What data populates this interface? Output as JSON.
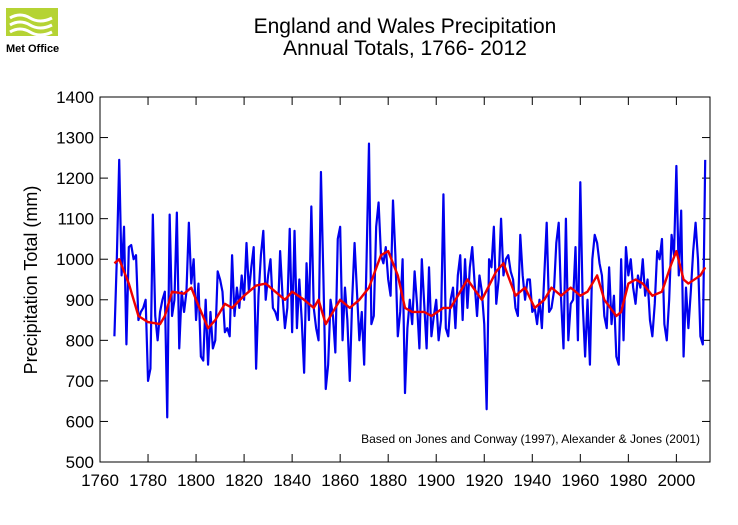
{
  "logo": {
    "text": "Met Office"
  },
  "chart_data": {
    "type": "line",
    "title": "England and Wales Precipitation",
    "subtitle": "Annual Totals, 1766- 2012",
    "ylabel": "Precipitation Total (mm)",
    "annotation": "Based on Jones and Conway (1997), Alexander & Jones (2001)",
    "xlim": [
      1760,
      2014
    ],
    "ylim": [
      500,
      1400
    ],
    "xticks": [
      1760,
      1780,
      1800,
      1820,
      1840,
      1860,
      1880,
      1900,
      1920,
      1940,
      1960,
      1980,
      2000
    ],
    "yticks": [
      500,
      600,
      700,
      800,
      900,
      1000,
      1100,
      1200,
      1300,
      1400
    ],
    "series": [
      {
        "color": "#0000ee",
        "x": [
          1766,
          1767,
          1768,
          1769,
          1770,
          1771,
          1772,
          1773,
          1774,
          1775,
          1776,
          1777,
          1778,
          1779,
          1780,
          1781,
          1782,
          1783,
          1784,
          1785,
          1786,
          1787,
          1788,
          1789,
          1790,
          1791,
          1792,
          1793,
          1794,
          1795,
          1796,
          1797,
          1798,
          1799,
          1800,
          1801,
          1802,
          1803,
          1804,
          1805,
          1806,
          1807,
          1808,
          1809,
          1810,
          1811,
          1812,
          1813,
          1814,
          1815,
          1816,
          1817,
          1818,
          1819,
          1820,
          1821,
          1822,
          1823,
          1824,
          1825,
          1826,
          1827,
          1828,
          1829,
          1830,
          1831,
          1832,
          1833,
          1834,
          1835,
          1836,
          1837,
          1838,
          1839,
          1840,
          1841,
          1842,
          1843,
          1844,
          1845,
          1846,
          1847,
          1848,
          1849,
          1850,
          1851,
          1852,
          1853,
          1854,
          1855,
          1856,
          1857,
          1858,
          1859,
          1860,
          1861,
          1862,
          1863,
          1864,
          1865,
          1866,
          1867,
          1868,
          1869,
          1870,
          1871,
          1872,
          1873,
          1874,
          1875,
          1876,
          1877,
          1878,
          1879,
          1880,
          1881,
          1882,
          1883,
          1884,
          1885,
          1886,
          1887,
          1888,
          1889,
          1890,
          1891,
          1892,
          1893,
          1894,
          1895,
          1896,
          1897,
          1898,
          1899,
          1900,
          1901,
          1902,
          1903,
          1904,
          1905,
          1906,
          1907,
          1908,
          1909,
          1910,
          1911,
          1912,
          1913,
          1914,
          1915,
          1916,
          1917,
          1918,
          1919,
          1920,
          1921,
          1922,
          1923,
          1924,
          1925,
          1926,
          1927,
          1928,
          1929,
          1930,
          1931,
          1932,
          1933,
          1934,
          1935,
          1936,
          1937,
          1938,
          1939,
          1940,
          1941,
          1942,
          1943,
          1944,
          1945,
          1946,
          1947,
          1948,
          1949,
          1950,
          1951,
          1952,
          1953,
          1954,
          1955,
          1956,
          1957,
          1958,
          1959,
          1960,
          1961,
          1962,
          1963,
          1964,
          1965,
          1966,
          1967,
          1968,
          1969,
          1970,
          1971,
          1972,
          1973,
          1974,
          1975,
          1976,
          1977,
          1978,
          1979,
          1980,
          1981,
          1982,
          1983,
          1984,
          1985,
          1986,
          1987,
          1988,
          1989,
          1990,
          1991,
          1992,
          1993,
          1994,
          1995,
          1996,
          1997,
          1998,
          1999,
          2000,
          2001,
          2002,
          2003,
          2004,
          2005,
          2006,
          2007,
          2008,
          2009,
          2010,
          2011,
          2012
        ],
        "values": [
          810,
          1000,
          1245,
          960,
          1080,
          790,
          1030,
          1035,
          1000,
          1010,
          850,
          870,
          880,
          900,
          700,
          730,
          1110,
          860,
          800,
          870,
          900,
          920,
          610,
          1110,
          860,
          900,
          1115,
          780,
          920,
          870,
          920,
          1090,
          940,
          1000,
          850,
          940,
          760,
          750,
          900,
          740,
          870,
          780,
          800,
          970,
          950,
          920,
          820,
          830,
          810,
          1010,
          860,
          930,
          880,
          960,
          900,
          1040,
          920,
          980,
          1030,
          730,
          910,
          1010,
          1070,
          900,
          960,
          1000,
          880,
          870,
          850,
          1020,
          910,
          830,
          880,
          1075,
          820,
          1070,
          830,
          950,
          850,
          720,
          990,
          850,
          1130,
          880,
          830,
          800,
          1215,
          960,
          680,
          740,
          900,
          860,
          770,
          1050,
          1080,
          800,
          930,
          850,
          700,
          900,
          1040,
          920,
          800,
          870,
          740,
          1000,
          1285,
          840,
          860,
          1080,
          1140,
          1010,
          990,
          1030,
          950,
          910,
          1145,
          1010,
          810,
          870,
          1000,
          670,
          830,
          900,
          840,
          970,
          890,
          780,
          1000,
          890,
          780,
          980,
          810,
          860,
          900,
          800,
          850,
          1160,
          830,
          810,
          900,
          930,
          830,
          960,
          1010,
          850,
          1000,
          880,
          980,
          1030,
          940,
          860,
          960,
          920,
          840,
          630,
          1000,
          980,
          1080,
          890,
          950,
          1100,
          960,
          1000,
          1010,
          970,
          950,
          880,
          860,
          1060,
          960,
          900,
          950,
          950,
          870,
          880,
          840,
          900,
          830,
          960,
          1090,
          870,
          880,
          920,
          1040,
          1090,
          900,
          780,
          1100,
          800,
          890,
          900,
          1030,
          800,
          1190,
          890,
          760,
          900,
          740,
          1000,
          1060,
          1040,
          990,
          960,
          860,
          830,
          980,
          840,
          910,
          760,
          740,
          1000,
          800,
          1030,
          960,
          1000,
          930,
          890,
          960,
          930,
          1000,
          910,
          950,
          850,
          810,
          890,
          1020,
          1000,
          1050,
          840,
          800,
          900,
          1060,
          1010,
          1230,
          960,
          1120,
          760,
          930,
          830,
          920,
          1020,
          1090,
          1000,
          810,
          790,
          1245
        ]
      },
      {
        "color": "#ee0000",
        "x": [
          1766,
          1768,
          1772,
          1776,
          1780,
          1785,
          1787,
          1790,
          1795,
          1798,
          1800,
          1805,
          1808,
          1812,
          1815,
          1820,
          1825,
          1829,
          1833,
          1837,
          1840,
          1845,
          1849,
          1851,
          1854,
          1857,
          1860,
          1864,
          1868,
          1872,
          1877,
          1880,
          1884,
          1887,
          1890,
          1895,
          1898,
          1903,
          1906,
          1910,
          1913,
          1919,
          1925,
          1928,
          1933,
          1937,
          1941,
          1945,
          1948,
          1952,
          1956,
          1960,
          1963,
          1967,
          1970,
          1975,
          1977,
          1980,
          1983,
          1986,
          1990,
          1994,
          1998,
          2000,
          2003,
          2005,
          2010,
          2012
        ],
        "values": [
          990,
          1000,
          940,
          860,
          845,
          840,
          860,
          920,
          915,
          930,
          900,
          830,
          850,
          890,
          880,
          910,
          935,
          940,
          920,
          900,
          920,
          900,
          880,
          900,
          840,
          870,
          900,
          880,
          900,
          930,
          1010,
          1020,
          960,
          880,
          870,
          870,
          860,
          880,
          880,
          920,
          950,
          900,
          970,
          990,
          910,
          930,
          880,
          900,
          930,
          910,
          930,
          910,
          920,
          960,
          900,
          860,
          870,
          940,
          950,
          940,
          910,
          920,
          990,
          1020,
          950,
          940,
          960,
          980
        ]
      }
    ]
  }
}
